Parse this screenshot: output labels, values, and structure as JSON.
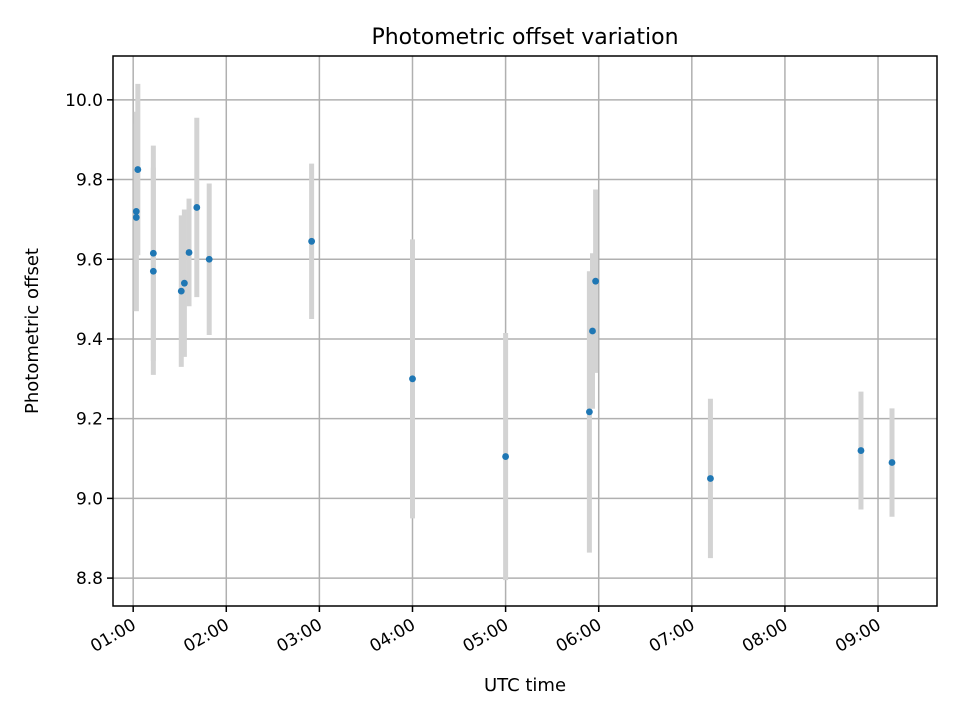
{
  "chart_data": {
    "type": "scatter",
    "title": "Photometric offset variation",
    "xlabel": "UTC time",
    "ylabel": "Photometric offset",
    "grid": true,
    "x_ticks": [
      "01:00",
      "02:00",
      "03:00",
      "04:00",
      "05:00",
      "06:00",
      "07:00",
      "08:00",
      "09:00"
    ],
    "y_ticks": [
      "8.8",
      "9.0",
      "9.2",
      "9.4",
      "9.6",
      "9.8",
      "10.0"
    ],
    "xlim": [
      "00:47",
      "09:38"
    ],
    "ylim": [
      8.73,
      10.11
    ],
    "series": [
      {
        "color": "#1f77b4",
        "errorbar_color": "#d3d3d3",
        "points": [
          {
            "time": "01:02",
            "y": 9.705,
            "err": 0.235
          },
          {
            "time": "01:02",
            "y": 9.72,
            "err": 0.25
          },
          {
            "time": "01:03",
            "y": 9.825,
            "err": 0.215
          },
          {
            "time": "01:13",
            "y": 9.615,
            "err": 0.27
          },
          {
            "time": "01:13",
            "y": 9.57,
            "err": 0.26
          },
          {
            "time": "01:31",
            "y": 9.52,
            "err": 0.19
          },
          {
            "time": "01:33",
            "y": 9.54,
            "err": 0.185
          },
          {
            "time": "01:36",
            "y": 9.617,
            "err": 0.135
          },
          {
            "time": "01:41",
            "y": 9.73,
            "err": 0.225
          },
          {
            "time": "01:49",
            "y": 9.6,
            "err": 0.19
          },
          {
            "time": "02:55",
            "y": 9.645,
            "err": 0.195
          },
          {
            "time": "04:00",
            "y": 9.3,
            "err": 0.35
          },
          {
            "time": "05:00",
            "y": 9.105,
            "err": 0.31
          },
          {
            "time": "05:54",
            "y": 9.217,
            "err": 0.353
          },
          {
            "time": "05:56",
            "y": 9.42,
            "err": 0.195
          },
          {
            "time": "05:58",
            "y": 9.545,
            "err": 0.23
          },
          {
            "time": "07:12",
            "y": 9.05,
            "err": 0.2
          },
          {
            "time": "08:49",
            "y": 9.12,
            "err": 0.148
          },
          {
            "time": "09:09",
            "y": 9.09,
            "err": 0.136
          }
        ]
      }
    ]
  }
}
